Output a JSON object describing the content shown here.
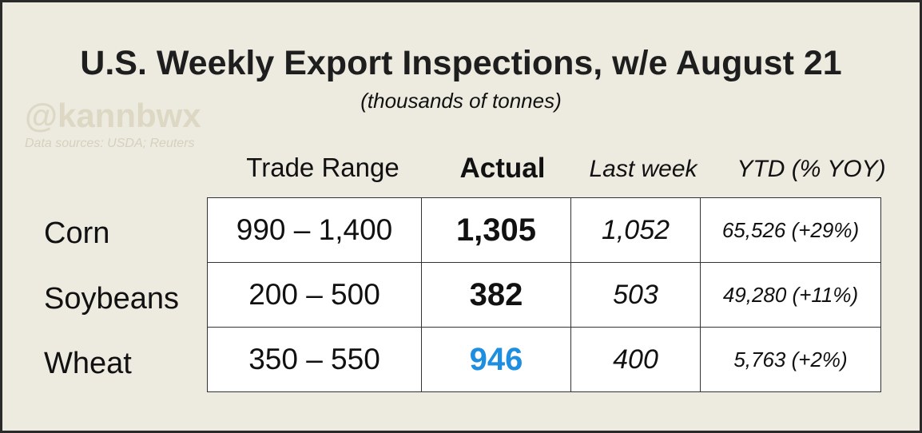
{
  "header": {
    "title": "U.S. Weekly Export Inspections, w/e August 21",
    "subtitle": "(thousands of tonnes)",
    "watermark": "@kannbwx",
    "sources": "Data sources: USDA; Reuters"
  },
  "table": {
    "columns": [
      "Trade Range",
      "Actual",
      "Last week",
      "YTD (% YOY)"
    ],
    "rows": [
      {
        "label": "Corn",
        "range": "990 – 1,400",
        "actual": "1,305",
        "actual_color": "#111111",
        "last_week": "1,052",
        "ytd": "65,526 (+29%)"
      },
      {
        "label": "Soybeans",
        "range": "200 – 500",
        "actual": "382",
        "actual_color": "#111111",
        "last_week": "503",
        "ytd": "49,280 (+11%)"
      },
      {
        "label": "Wheat",
        "range": "350 – 550",
        "actual": "946",
        "actual_color": "#1e8fe0",
        "last_week": "400",
        "ytd": "5,763 (+2%)"
      }
    ]
  }
}
